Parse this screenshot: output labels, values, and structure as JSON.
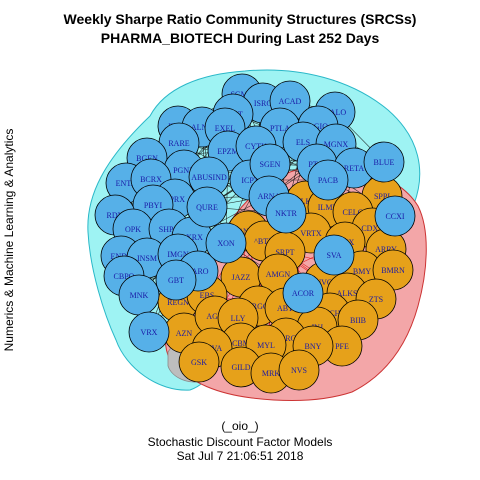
{
  "title_line1": "Weekly Sharpe Ratio Community Structures (SRCSs)",
  "title_line2": "PHARMA_BIOTECH During Last 252 Days",
  "ylabel": "Numerics & Machine Learning & Analytics",
  "footer_line1": "(_oio_)",
  "footer_line2": "Stochastic Discount Factor Models",
  "footer_line3": "Sat Jul  7 21:06:51 2018",
  "colors": {
    "community_blue": "#56b0e8",
    "community_orange": "#e6a11a",
    "hull_cyan": "#9ef3f3",
    "hull_red": "#f3a6a8",
    "hull_gray": "#bdbdbd",
    "edge_black": "#111111",
    "edge_red": "#dd1111",
    "label": "#1a1aa6"
  },
  "communities": [
    {
      "name": "blue",
      "nodes": [
        "SGMO",
        "ISRG",
        "ACAD",
        "PTCT",
        "HALO",
        "INCY",
        "ALNY",
        "EXEL",
        "PTLA",
        "AGIO",
        "RARE",
        "EPZM",
        "CYTK",
        "ELS",
        "MGNX",
        "BGEN",
        "ICPT",
        "SGEN",
        "PTCI",
        "RETA",
        "BLUE",
        "PGNX",
        "ABUSIND",
        "PACB",
        "ENTA",
        "BCRX",
        "ARNA",
        "FPRX",
        "PBYI",
        "QURE",
        "RDY",
        "NKTR",
        "OPK",
        "SHPG",
        "LXRX",
        "XON",
        "ENDP",
        "INSM",
        "IMGN",
        "CBPO",
        "GBT",
        "TARO",
        "MNK",
        "VRX",
        "ACOR",
        "SVA",
        "CCXI"
      ]
    },
    {
      "name": "orange",
      "nodes": [
        "SPPI",
        "ALKN",
        "ILMN",
        "CELG",
        "CDXS",
        "VRTX",
        "AMX",
        "ARRY",
        "BMY",
        "BMRN",
        "^NBI",
        "^BTK",
        "SRPT",
        "JAZZ",
        "AMGN",
        "NVO",
        "ALKS",
        "ZTS",
        "REGN",
        "EBS",
        "PRGO",
        "ABT",
        "TECH",
        "AZN",
        "AGN",
        "LLY",
        "JNJ",
        "BIIB",
        "CBM",
        "^DRG",
        "MYL",
        "PFE",
        "TEVA",
        "BNY",
        "GSK",
        "GILD",
        "MRK",
        "NVS"
      ]
    }
  ]
}
